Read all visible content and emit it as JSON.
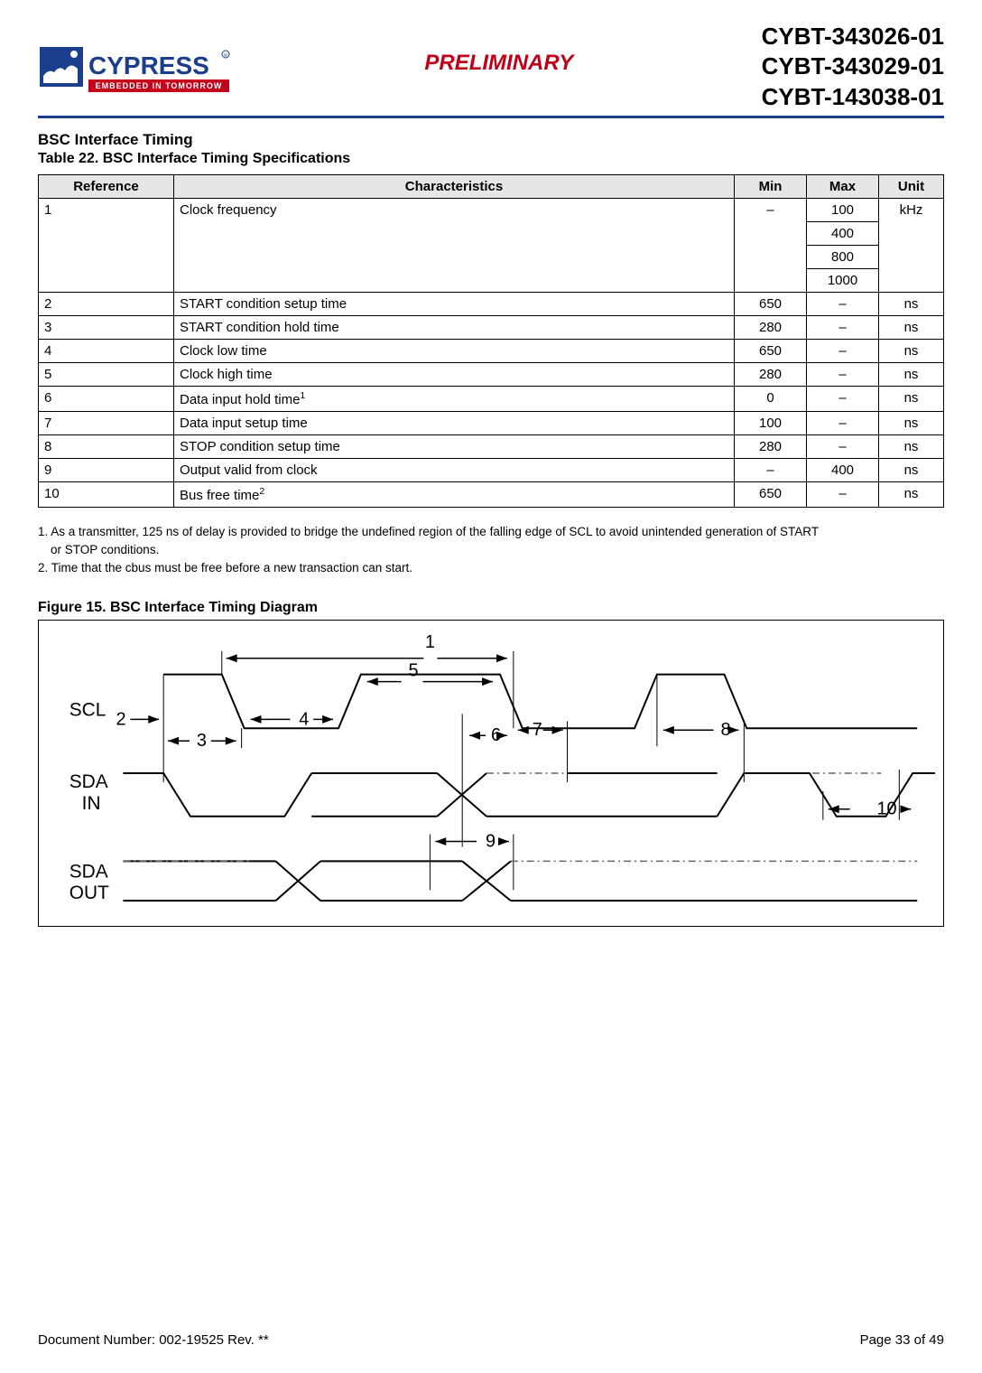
{
  "header": {
    "watermark": "PRELIMINARY",
    "watermark_color": "#c00018",
    "part_numbers": [
      "CYBT-343026-01",
      "CYBT-343029-01",
      "CYBT-143038-01"
    ],
    "logo": {
      "brand": "CYPRESS",
      "tagline": "EMBEDDED IN TOMORROW",
      "primary_color": "#1a3e8c",
      "accent_color": "#c4001a"
    },
    "rule_color": "#1a3e8c"
  },
  "section": {
    "title": "BSC Interface Timing",
    "table_caption": "Table 22.  BSC Interface Timing Specifications"
  },
  "table": {
    "columns": [
      "Reference",
      "Characteristics",
      "Min",
      "Max",
      "Unit"
    ],
    "rows": [
      {
        "ref": "1",
        "char": "Clock frequency",
        "min": "–",
        "max_values": [
          "100",
          "400",
          "800",
          "1000"
        ],
        "unit": "kHz"
      },
      {
        "ref": "2",
        "char": "START condition setup time",
        "min": "650",
        "max": "–",
        "unit": "ns"
      },
      {
        "ref": "3",
        "char": "START condition hold time",
        "min": "280",
        "max": "–",
        "unit": "ns"
      },
      {
        "ref": "4",
        "char": "Clock low time",
        "min": "650",
        "max": "–",
        "unit": "ns"
      },
      {
        "ref": "5",
        "char": "Clock high time",
        "min": "280",
        "max": "–",
        "unit": "ns"
      },
      {
        "ref": "6",
        "char": "Data input hold time",
        "sup": "1",
        "min": "0",
        "max": "–",
        "unit": "ns"
      },
      {
        "ref": "7",
        "char": "Data input setup time",
        "min": "100",
        "max": "–",
        "unit": "ns"
      },
      {
        "ref": "8",
        "char": "STOP condition setup time",
        "min": "280",
        "max": "–",
        "unit": "ns"
      },
      {
        "ref": "9",
        "char": "Output valid from clock",
        "min": "–",
        "max": "400",
        "unit": "ns"
      },
      {
        "ref": "10",
        "char": "Bus free time",
        "sup": "2",
        "min": "650",
        "max": "–",
        "unit": "ns"
      }
    ],
    "header_bg": "#e6e6e6",
    "border_color": "#000000",
    "font_size": 15
  },
  "footnotes": [
    "1. As a transmitter, 125 ns of delay is provided to bridge the undefined region of the falling edge of SCL to avoid unintended generation of START or STOP conditions.",
    "2. Time that the cbus must be free before a new transaction can start."
  ],
  "figure": {
    "caption": "Figure 15.  BSC Interface Timing Diagram",
    "signals": [
      "SCL",
      "SDA IN",
      "SDA OUT"
    ],
    "markers": [
      "1",
      "2",
      "3",
      "4",
      "5",
      "6",
      "7",
      "8",
      "9",
      "10"
    ],
    "line_color": "#000000",
    "dashdot_color": "#666666",
    "font_size": 21
  },
  "footer": {
    "doc_number": "Document Number: 002-19525 Rev. **",
    "page": "Page 33 of 49"
  }
}
